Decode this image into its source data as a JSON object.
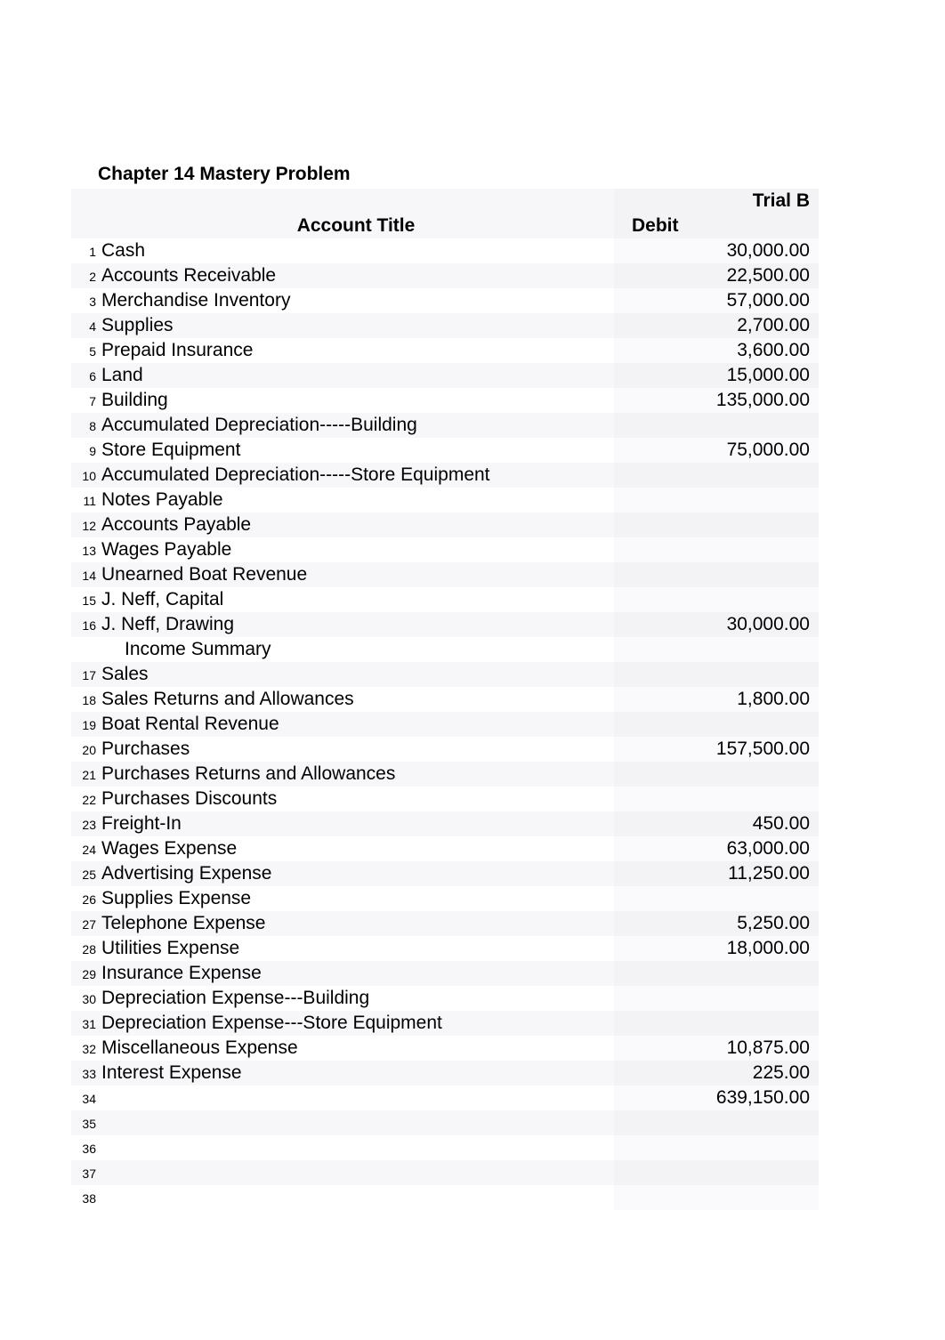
{
  "title": "Chapter 14 Mastery Problem",
  "header": {
    "trial": "Trial B",
    "account_title": "Account Title",
    "debit": "Debit"
  },
  "colors": {
    "background": "#ffffff",
    "alt_row_left": "#f7f7fa",
    "alt_row_right": "#f3f3f6",
    "norm_row_right": "#fafafc",
    "text": "#000000"
  },
  "typography": {
    "body_fontsize": 21,
    "rownum_fontsize": 14,
    "font_family": "Arial"
  },
  "rows": [
    {
      "n": "1",
      "t": "Cash",
      "d": "30,000.00"
    },
    {
      "n": "2",
      "t": "Accounts Receivable",
      "d": "22,500.00"
    },
    {
      "n": "3",
      "t": "Merchandise Inventory",
      "d": "57,000.00"
    },
    {
      "n": "4",
      "t": "Supplies",
      "d": "2,700.00"
    },
    {
      "n": "5",
      "t": "Prepaid Insurance",
      "d": "3,600.00"
    },
    {
      "n": "6",
      "t": "Land",
      "d": "15,000.00"
    },
    {
      "n": "7",
      "t": "Building",
      "d": "135,000.00"
    },
    {
      "n": "8",
      "t": "Accumulated Depreciation-----Building",
      "d": ""
    },
    {
      "n": "9",
      "t": "Store Equipment",
      "d": "75,000.00"
    },
    {
      "n": "10",
      "t": "Accumulated Depreciation-----Store Equipment",
      "d": ""
    },
    {
      "n": "11",
      "t": "Notes Payable",
      "d": ""
    },
    {
      "n": "12",
      "t": "Accounts Payable",
      "d": ""
    },
    {
      "n": "13",
      "t": "Wages Payable",
      "d": ""
    },
    {
      "n": "14",
      "t": "Unearned Boat Revenue",
      "d": ""
    },
    {
      "n": "15",
      "t": "J. Neff, Capital",
      "d": ""
    },
    {
      "n": "16",
      "t": "J. Neff, Drawing",
      "d": "30,000.00"
    },
    {
      "n": "",
      "t": "Income Summary",
      "d": "",
      "indent": true
    },
    {
      "n": "17",
      "t": "Sales",
      "d": ""
    },
    {
      "n": "18",
      "t": "Sales Returns and Allowances",
      "d": "1,800.00"
    },
    {
      "n": "19",
      "t": "Boat Rental Revenue",
      "d": ""
    },
    {
      "n": "20",
      "t": "Purchases",
      "d": "157,500.00"
    },
    {
      "n": "21",
      "t": "Purchases Returns and Allowances",
      "d": ""
    },
    {
      "n": "22",
      "t": "Purchases Discounts",
      "d": ""
    },
    {
      "n": "23",
      "t": "Freight-In",
      "d": "450.00"
    },
    {
      "n": "24",
      "t": "Wages Expense",
      "d": "63,000.00"
    },
    {
      "n": "25",
      "t": "Advertising Expense",
      "d": "11,250.00"
    },
    {
      "n": "26",
      "t": "Supplies Expense",
      "d": ""
    },
    {
      "n": "27",
      "t": "Telephone Expense",
      "d": "5,250.00"
    },
    {
      "n": "28",
      "t": "Utilities Expense",
      "d": "18,000.00"
    },
    {
      "n": "29",
      "t": "Insurance Expense",
      "d": ""
    },
    {
      "n": "30",
      "t": "Depreciation Expense---Building",
      "d": ""
    },
    {
      "n": "31",
      "t": "Depreciation Expense---Store Equipment",
      "d": ""
    },
    {
      "n": "32",
      "t": "Miscellaneous Expense",
      "d": "10,875.00"
    },
    {
      "n": "33",
      "t": "Interest Expense",
      "d": "225.00"
    },
    {
      "n": "34",
      "t": "",
      "d": "639,150.00"
    },
    {
      "n": "35",
      "t": "",
      "d": ""
    },
    {
      "n": "36",
      "t": "",
      "d": ""
    },
    {
      "n": "37",
      "t": "",
      "d": ""
    },
    {
      "n": "38",
      "t": "",
      "d": ""
    }
  ]
}
